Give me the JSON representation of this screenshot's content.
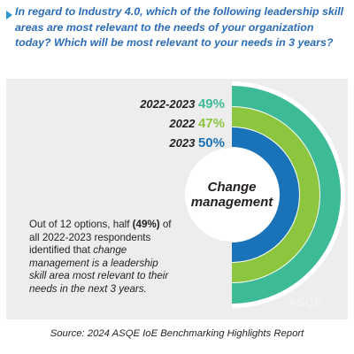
{
  "header": {
    "question": "In regard to Industry 4.0, which of the following leadership skill areas are most relevant to the needs of your organization today? Which will be most relevant to your needs in 3 years?"
  },
  "chart_data": {
    "type": "radial-bar",
    "center_label_line1": "Change",
    "center_label_line2": "management",
    "series": [
      {
        "name": "2022-2023",
        "value": 49,
        "value_label": "49%",
        "color": "#3dbb96"
      },
      {
        "name": "2022",
        "value": 47,
        "value_label": "47%",
        "color": "#8cc63f"
      },
      {
        "name": "2023",
        "value": 50,
        "value_label": "50%",
        "color": "#1a73b8"
      }
    ]
  },
  "description": {
    "part1": "Out of 12 options, half ",
    "highlight": "(49%)",
    "part2": " of all 2022-2023 respondents identified that ",
    "italic": "change management is a leadership skill area most relevant to their needs in the next 3 years."
  },
  "watermark": "ASQE",
  "source": "Source: 2024 ASQE IoE Benchmarking Highlights Report"
}
